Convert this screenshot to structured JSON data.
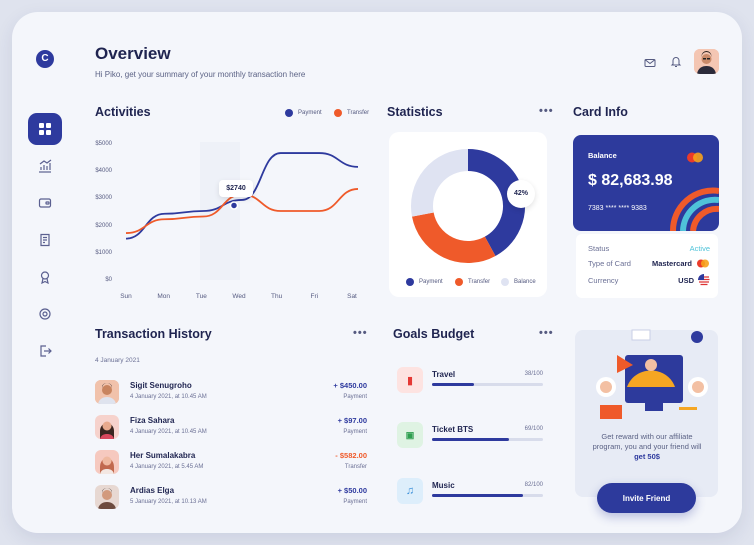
{
  "brand": {
    "logo_letter": "C"
  },
  "header": {
    "title": "Overview",
    "subtitle": "Hi Piko, get your summary of your monthly transaction here"
  },
  "nav": [
    "dashboard-icon",
    "analytics-icon",
    "wallet-icon",
    "invoice-icon",
    "rewards-icon",
    "settings-icon",
    "logout-icon"
  ],
  "activities": {
    "title": "Activities",
    "legend": [
      "Payment",
      "Transfer"
    ],
    "tooltip": "$2740"
  },
  "statistics": {
    "title": "Statistics",
    "percent_label": "42%",
    "legend": [
      "Payment",
      "Transfer",
      "Balance"
    ]
  },
  "card_info": {
    "title": "Card Info",
    "balance_label": "Balance",
    "balance": "$ 82,683.98",
    "card_number": "7383 **** **** 9383",
    "rows": [
      {
        "key": "Status",
        "value": "Active"
      },
      {
        "key": "Type of Card",
        "value": "Mastercard"
      },
      {
        "key": "Currency",
        "value": "USD"
      }
    ]
  },
  "transactions": {
    "title": "Transaction History",
    "date_header": "4 January 2021",
    "items": [
      {
        "name": "Sigit Senugroho",
        "date": "4 January 2021, at 10.45 AM",
        "amount": "+ $450.00",
        "type": "Payment"
      },
      {
        "name": "Fiza Sahara",
        "date": "4 January 2021, at 10.45 AM",
        "amount": "+ $97.00",
        "type": "Payment"
      },
      {
        "name": "Her Sumalakabra",
        "date": "4 January 2021, at 5.45 AM",
        "amount": "- $582.00",
        "type": "Transfer"
      },
      {
        "name": "Ardias Elga",
        "date": "5 January 2021, at 10.13 AM",
        "amount": "+ $50.00",
        "type": "Payment"
      }
    ]
  },
  "goals": {
    "title": "Goals Budget",
    "items": [
      {
        "name": "Travel",
        "value": "38/100",
        "progress": 0.38
      },
      {
        "name": "Ticket BTS",
        "value": "69/100",
        "progress": 0.69
      },
      {
        "name": "Music",
        "value": "82/100",
        "progress": 0.82
      }
    ]
  },
  "promo": {
    "text": "Get reward with our affiliate program, you and your friend will",
    "highlight": "get 50$",
    "button": "Invite Friend"
  },
  "colors": {
    "primary": "#2e3a9e",
    "transfer": "#ef5a2a",
    "balance": "#dfe3f2",
    "active": "#4fc3d9"
  },
  "chart_data": {
    "type": "line",
    "categories": [
      "Sun",
      "Mon",
      "Tue",
      "Wed",
      "Thu",
      "Fri",
      "Sat"
    ],
    "yticks": [
      "$5000",
      "$4000",
      "$3000",
      "$2000",
      "$1000",
      "$0"
    ],
    "ylim": [
      0,
      5000
    ],
    "series": [
      {
        "name": "Payment",
        "values": [
          1500,
          2400,
          2500,
          2900,
          4600,
          4600,
          4100
        ]
      },
      {
        "name": "Transfer",
        "values": [
          1700,
          2200,
          2300,
          3100,
          2500,
          2500,
          3300
        ]
      }
    ],
    "donut": [
      {
        "name": "Payment",
        "percent": 42
      },
      {
        "name": "Transfer",
        "percent": 30
      },
      {
        "name": "Balance",
        "percent": 28
      }
    ]
  }
}
